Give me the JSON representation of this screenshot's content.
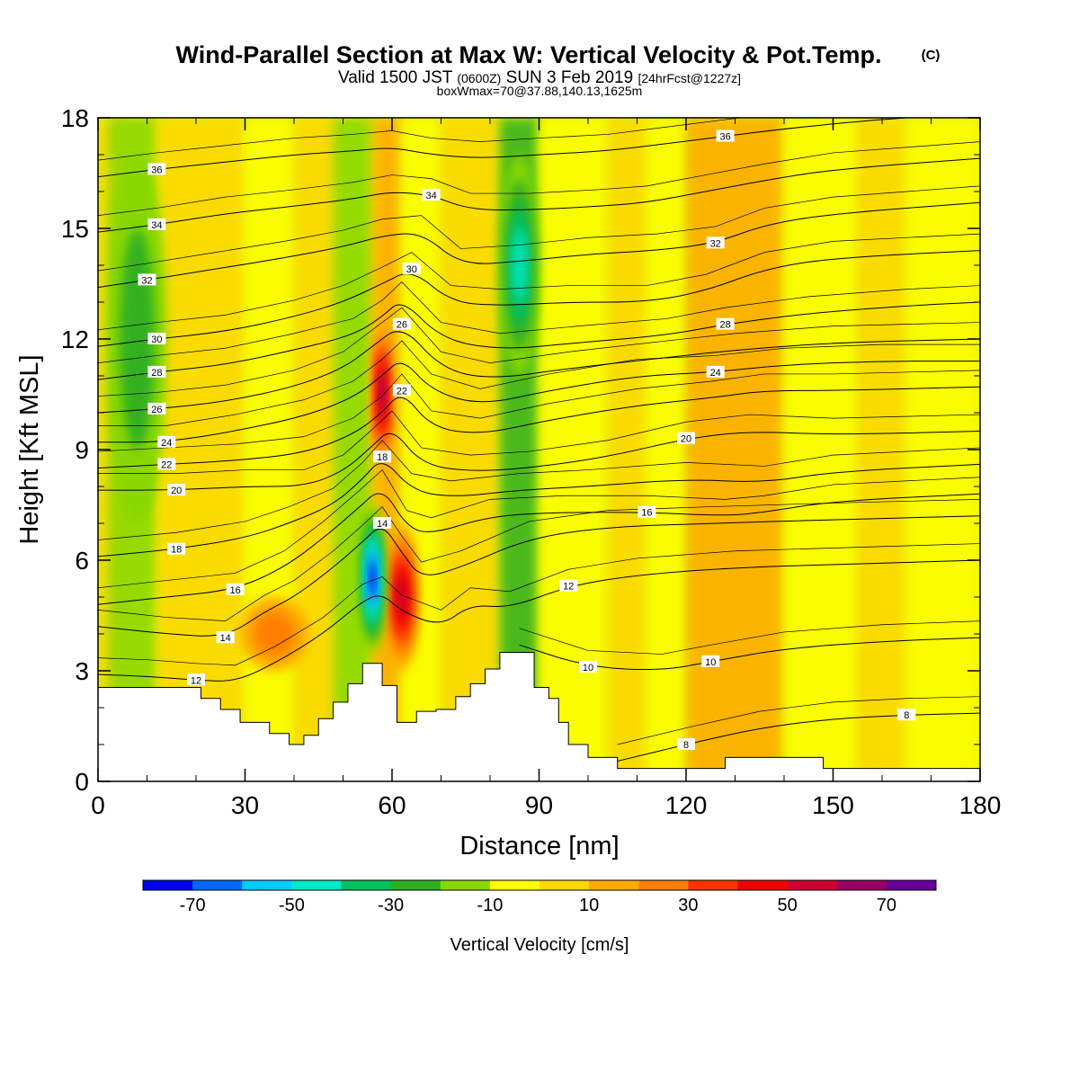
{
  "header": {
    "title": "Wind-Parallel Section at Max W: Vertical Velocity & Pot.Temp.",
    "copyright": "(C)",
    "subtitle_pre": "Valid 1500 JST",
    "subtitle_z": "(0600Z)",
    "subtitle_date": "SUN 3 Feb 2019",
    "subtitle_fcst": "[24hrFcst@1227z]",
    "box_info": "boxWmax=70@37.88,140.13,1625m"
  },
  "chart_data": {
    "type": "heatmap",
    "xlabel": "Distance [nm]",
    "ylabel": "Height [Kft MSL]",
    "xlim": [
      0,
      180
    ],
    "ylim": [
      0,
      18
    ],
    "x_ticks": [
      0,
      30,
      60,
      90,
      120,
      150,
      180
    ],
    "y_ticks": [
      0,
      3,
      6,
      9,
      12,
      15,
      18
    ],
    "colorbar": {
      "label": "Vertical Velocity [cm/s]",
      "tick_values": [
        -70,
        -50,
        -30,
        -10,
        10,
        30,
        50,
        70
      ],
      "tick_labels": [
        "-70",
        "-50",
        "-30",
        "-10",
        "10",
        "30",
        "50",
        "70"
      ],
      "bins": [
        -80,
        -70,
        -60,
        -50,
        -40,
        -30,
        -20,
        -10,
        0,
        10,
        20,
        30,
        40,
        50,
        60,
        70,
        80
      ],
      "colors": [
        "#0000ee",
        "#0066ff",
        "#00ccff",
        "#00e8c8",
        "#00c060",
        "#30b020",
        "#88d800",
        "#ffff00",
        "#ffd800",
        "#ffaa00",
        "#ff7f00",
        "#ff3300",
        "#ee0000",
        "#cc0033",
        "#990066",
        "#660099"
      ]
    },
    "terrain_top": [
      [
        0,
        2.55
      ],
      [
        21,
        2.55
      ],
      [
        21,
        2.25
      ],
      [
        25,
        2.25
      ],
      [
        25,
        1.95
      ],
      [
        29,
        1.95
      ],
      [
        29,
        1.6
      ],
      [
        35,
        1.6
      ],
      [
        35,
        1.3
      ],
      [
        39,
        1.3
      ],
      [
        39,
        1.0
      ],
      [
        42,
        1.0
      ],
      [
        42,
        1.25
      ],
      [
        45,
        1.25
      ],
      [
        45,
        1.7
      ],
      [
        48,
        1.7
      ],
      [
        48,
        2.15
      ],
      [
        51,
        2.15
      ],
      [
        51,
        2.65
      ],
      [
        54,
        2.65
      ],
      [
        54,
        3.2
      ],
      [
        58,
        3.2
      ],
      [
        58,
        2.6
      ],
      [
        61,
        2.6
      ],
      [
        61,
        1.6
      ],
      [
        65,
        1.6
      ],
      [
        65,
        1.9
      ],
      [
        69,
        1.9
      ],
      [
        69,
        1.95
      ],
      [
        73,
        1.95
      ],
      [
        73,
        2.3
      ],
      [
        76,
        2.3
      ],
      [
        76,
        2.65
      ],
      [
        79,
        2.65
      ],
      [
        79,
        3.05
      ],
      [
        82,
        3.05
      ],
      [
        82,
        3.5
      ],
      [
        89,
        3.5
      ],
      [
        89,
        2.55
      ],
      [
        92,
        2.55
      ],
      [
        92,
        2.25
      ],
      [
        94,
        2.25
      ],
      [
        94,
        1.6
      ],
      [
        96,
        1.6
      ],
      [
        96,
        1.0
      ],
      [
        100,
        1.0
      ],
      [
        100,
        0.65
      ],
      [
        106,
        0.65
      ],
      [
        106,
        0.35
      ],
      [
        128,
        0.35
      ],
      [
        128,
        0.65
      ],
      [
        148,
        0.65
      ],
      [
        148,
        0.35
      ],
      [
        180,
        0.35
      ]
    ],
    "w_features": [
      {
        "x": 58,
        "y": 10.5,
        "w": 60,
        "x_range": [
          56,
          60
        ],
        "y_range": [
          8,
          12
        ]
      },
      {
        "x": 62,
        "y": 5.0,
        "w": 50,
        "x_range": [
          59,
          66
        ],
        "y_range": [
          3,
          7
        ]
      },
      {
        "x": 56,
        "y": 5.5,
        "w": -70,
        "x_range": [
          54,
          59
        ],
        "y_range": [
          3,
          7
        ]
      },
      {
        "x": 86,
        "y": 14.0,
        "w": -40,
        "x_range": [
          82,
          90
        ],
        "y_range": [
          12,
          18
        ]
      },
      {
        "x": 36,
        "y": 4.0,
        "w": 20,
        "x_range": [
          30,
          44
        ],
        "y_range": [
          3,
          5
        ]
      },
      {
        "x": 8,
        "y": 12.0,
        "w": -20,
        "x_range": [
          2,
          14
        ],
        "y_range": [
          8,
          18
        ]
      }
    ],
    "theta_isentropes": [
      {
        "label": "8",
        "pts": [
          [
            106,
            0.55
          ],
          [
            120,
            1.0
          ],
          [
            135,
            1.45
          ],
          [
            150,
            1.7
          ],
          [
            165,
            1.8
          ],
          [
            180,
            1.85
          ]
        ]
      },
      {
        "label": "10",
        "pts": [
          [
            86,
            3.7
          ],
          [
            100,
            3.1
          ],
          [
            115,
            3.0
          ],
          [
            125,
            3.25
          ],
          [
            140,
            3.6
          ],
          [
            160,
            3.8
          ],
          [
            180,
            3.9
          ]
        ]
      },
      {
        "label": "12",
        "pts": [
          [
            0,
            2.9
          ],
          [
            10,
            2.85
          ],
          [
            20,
            2.75
          ],
          [
            28,
            2.7
          ],
          [
            36,
            3.2
          ],
          [
            46,
            4.0
          ],
          [
            54,
            4.9
          ],
          [
            58,
            5.1
          ],
          [
            62,
            4.6
          ],
          [
            70,
            4.2
          ],
          [
            76,
            4.8
          ],
          [
            84,
            4.7
          ],
          [
            96,
            5.3
          ],
          [
            110,
            5.6
          ],
          [
            130,
            5.8
          ],
          [
            155,
            5.9
          ],
          [
            180,
            6.0
          ]
        ]
      },
      {
        "label": "14",
        "pts": [
          [
            0,
            4.2
          ],
          [
            14,
            4.0
          ],
          [
            26,
            3.9
          ],
          [
            34,
            4.6
          ],
          [
            40,
            5.0
          ],
          [
            48,
            5.8
          ],
          [
            54,
            6.5
          ],
          [
            58,
            7.0
          ],
          [
            62,
            6.2
          ],
          [
            66,
            5.5
          ],
          [
            74,
            5.8
          ],
          [
            88,
            6.6
          ],
          [
            104,
            6.9
          ],
          [
            125,
            7.0
          ],
          [
            150,
            7.1
          ],
          [
            180,
            7.2
          ]
        ]
      },
      {
        "label": "16",
        "pts": [
          [
            0,
            4.8
          ],
          [
            14,
            5.0
          ],
          [
            28,
            5.2
          ],
          [
            38,
            5.8
          ],
          [
            46,
            6.6
          ],
          [
            53,
            7.4
          ],
          [
            58,
            8.0
          ],
          [
            63,
            6.9
          ],
          [
            68,
            6.7
          ],
          [
            80,
            7.2
          ],
          [
            95,
            7.3
          ],
          [
            112,
            7.3
          ],
          [
            128,
            7.2
          ],
          [
            136,
            7.3
          ],
          [
            150,
            7.6
          ],
          [
            180,
            7.8
          ]
        ]
      },
      {
        "label": "18",
        "pts": [
          [
            0,
            6.1
          ],
          [
            16,
            6.3
          ],
          [
            30,
            6.6
          ],
          [
            39,
            7.0
          ],
          [
            48,
            7.5
          ],
          [
            54,
            8.2
          ],
          [
            58,
            8.8
          ],
          [
            64,
            7.9
          ],
          [
            72,
            7.7
          ],
          [
            86,
            7.9
          ],
          [
            100,
            8.0
          ],
          [
            120,
            8.2
          ],
          [
            136,
            8.1
          ],
          [
            150,
            8.4
          ],
          [
            180,
            8.6
          ]
        ]
      },
      {
        "label": "20",
        "pts": [
          [
            0,
            7.9
          ],
          [
            16,
            7.9
          ],
          [
            30,
            8.0
          ],
          [
            42,
            8.0
          ],
          [
            50,
            8.4
          ],
          [
            56,
            9.1
          ],
          [
            60,
            9.6
          ],
          [
            66,
            8.6
          ],
          [
            76,
            8.4
          ],
          [
            88,
            8.5
          ],
          [
            104,
            8.8
          ],
          [
            120,
            9.3
          ],
          [
            133,
            9.5
          ],
          [
            150,
            9.4
          ],
          [
            180,
            9.5
          ]
        ]
      },
      {
        "label": "22",
        "pts": [
          [
            0,
            8.5
          ],
          [
            14,
            8.6
          ],
          [
            28,
            8.7
          ],
          [
            42,
            8.9
          ],
          [
            52,
            9.4
          ],
          [
            58,
            10.0
          ],
          [
            62,
            10.6
          ],
          [
            68,
            9.6
          ],
          [
            78,
            9.4
          ],
          [
            92,
            9.8
          ],
          [
            110,
            10.2
          ],
          [
            125,
            10.4
          ],
          [
            136,
            10.6
          ],
          [
            150,
            10.6
          ],
          [
            180,
            10.7
          ]
        ]
      },
      {
        "label": "24",
        "pts": [
          [
            0,
            9.2
          ],
          [
            14,
            9.2
          ],
          [
            28,
            9.5
          ],
          [
            42,
            9.9
          ],
          [
            52,
            10.4
          ],
          [
            58,
            11.0
          ],
          [
            62,
            11.5
          ],
          [
            68,
            10.6
          ],
          [
            78,
            10.2
          ],
          [
            92,
            10.6
          ],
          [
            110,
            11.0
          ],
          [
            126,
            11.1
          ],
          [
            140,
            11.3
          ],
          [
            160,
            11.4
          ],
          [
            180,
            11.4
          ]
        ]
      },
      {
        "label": "26",
        "pts": [
          [
            0,
            10.0
          ],
          [
            12,
            10.1
          ],
          [
            26,
            10.3
          ],
          [
            40,
            10.7
          ],
          [
            50,
            11.2
          ],
          [
            56,
            11.8
          ],
          [
            62,
            12.4
          ],
          [
            70,
            11.2
          ],
          [
            80,
            10.9
          ],
          [
            96,
            11.2
          ],
          [
            116,
            11.5
          ],
          [
            130,
            11.7
          ],
          [
            150,
            11.9
          ],
          [
            180,
            12.0
          ]
        ]
      },
      {
        "label": "28",
        "pts": [
          [
            0,
            10.9
          ],
          [
            12,
            11.1
          ],
          [
            26,
            11.3
          ],
          [
            40,
            11.7
          ],
          [
            52,
            12.1
          ],
          [
            58,
            12.6
          ],
          [
            62,
            13.1
          ],
          [
            70,
            12.0
          ],
          [
            82,
            11.7
          ],
          [
            98,
            11.9
          ],
          [
            116,
            12.1
          ],
          [
            128,
            12.4
          ],
          [
            145,
            12.7
          ],
          [
            165,
            12.9
          ],
          [
            180,
            13.0
          ]
        ]
      },
      {
        "label": "30",
        "pts": [
          [
            0,
            11.8
          ],
          [
            12,
            12.0
          ],
          [
            26,
            12.2
          ],
          [
            40,
            12.6
          ],
          [
            50,
            13.0
          ],
          [
            58,
            13.5
          ],
          [
            64,
            13.9
          ],
          [
            72,
            13.0
          ],
          [
            82,
            12.9
          ],
          [
            96,
            13.0
          ],
          [
            112,
            13.0
          ],
          [
            124,
            13.3
          ],
          [
            136,
            13.9
          ],
          [
            150,
            14.2
          ],
          [
            180,
            14.4
          ]
        ]
      },
      {
        "label": "32",
        "pts": [
          [
            0,
            13.4
          ],
          [
            10,
            13.6
          ],
          [
            24,
            13.9
          ],
          [
            38,
            14.2
          ],
          [
            50,
            14.5
          ],
          [
            58,
            14.8
          ],
          [
            66,
            14.9
          ],
          [
            74,
            14.0
          ],
          [
            86,
            14.1
          ],
          [
            100,
            14.3
          ],
          [
            114,
            14.4
          ],
          [
            126,
            14.6
          ],
          [
            136,
            15.1
          ],
          [
            150,
            15.4
          ],
          [
            180,
            15.7
          ]
        ]
      },
      {
        "label": "34",
        "pts": [
          [
            0,
            14.9
          ],
          [
            12,
            15.1
          ],
          [
            26,
            15.4
          ],
          [
            40,
            15.6
          ],
          [
            52,
            15.8
          ],
          [
            60,
            16.0
          ],
          [
            68,
            15.9
          ],
          [
            76,
            15.5
          ],
          [
            88,
            15.5
          ],
          [
            102,
            15.6
          ],
          [
            112,
            15.7
          ],
          [
            124,
            16.0
          ],
          [
            136,
            16.3
          ],
          [
            150,
            16.6
          ],
          [
            180,
            16.9
          ]
        ]
      },
      {
        "label": "36",
        "pts": [
          [
            0,
            16.4
          ],
          [
            12,
            16.6
          ],
          [
            26,
            16.8
          ],
          [
            40,
            17.0
          ],
          [
            52,
            17.1
          ],
          [
            60,
            17.2
          ],
          [
            68,
            17.0
          ],
          [
            78,
            16.9
          ],
          [
            90,
            17.0
          ],
          [
            104,
            17.1
          ],
          [
            116,
            17.3
          ],
          [
            128,
            17.5
          ],
          [
            140,
            17.7
          ],
          [
            155,
            17.9
          ],
          [
            165,
            18.0
          ]
        ]
      }
    ]
  }
}
